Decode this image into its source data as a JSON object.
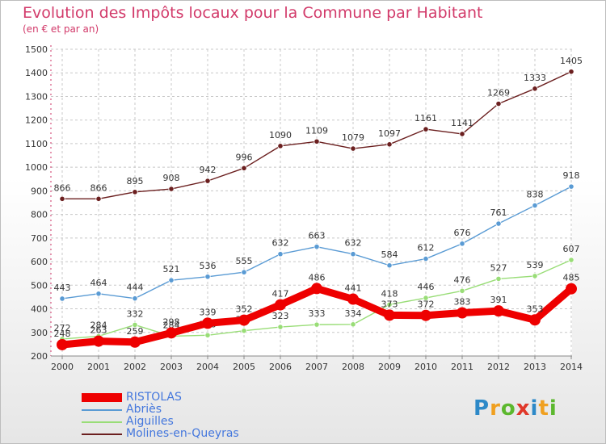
{
  "title": "Evolution des Impôts locaux pour la Commune par Habitant",
  "subtitle": "(en € et par an)",
  "chart_data": {
    "type": "line",
    "x": [
      2000,
      2001,
      2002,
      2003,
      2004,
      2005,
      2006,
      2007,
      2008,
      2009,
      2010,
      2011,
      2012,
      2013,
      2014
    ],
    "ylim": [
      200,
      1500
    ],
    "yticks": [
      200,
      300,
      400,
      500,
      600,
      700,
      800,
      900,
      1000,
      1100,
      1200,
      1300,
      1400,
      1500
    ],
    "grid": true,
    "legend_position": "bottom-left",
    "series": [
      {
        "name": "Molines-en-Queyras",
        "color": "#6b1f1f",
        "values": [
          866,
          866,
          895,
          908,
          942,
          996,
          1090,
          1109,
          1079,
          1097,
          1161,
          1141,
          1269,
          1333,
          1405
        ]
      },
      {
        "name": "Abriès",
        "color": "#5a9bd4",
        "values": [
          443,
          464,
          444,
          521,
          536,
          555,
          632,
          663,
          632,
          584,
          612,
          676,
          761,
          838,
          918
        ]
      },
      {
        "name": "Aiguilles",
        "color": "#99dd77",
        "values": [
          272,
          284,
          332,
          284,
          288,
          307,
          323,
          333,
          334,
          418,
          446,
          476,
          527,
          539,
          607
        ]
      },
      {
        "name": "RISTOLAS",
        "color": "#ee0000",
        "values": [
          248,
          263,
          259,
          298,
          339,
          352,
          417,
          486,
          441,
          373,
          372,
          383,
          391,
          353,
          485
        ]
      }
    ]
  },
  "legend": {
    "items": [
      {
        "label": "RISTOLAS",
        "color": "#ee0000"
      },
      {
        "label": "Abriès",
        "color": "#5a9bd4"
      },
      {
        "label": "Aiguilles",
        "color": "#99dd77"
      },
      {
        "label": "Molines-en-Queyras",
        "color": "#6b1f1f"
      }
    ]
  },
  "logo": {
    "letters": [
      "P",
      "r",
      "o",
      "x",
      "i",
      "t",
      "i"
    ],
    "colors": [
      "#2d89c8",
      "#f0a020",
      "#5cb82e",
      "#e0382a",
      "#2d89c8",
      "#f0a020",
      "#5cb82e"
    ]
  }
}
